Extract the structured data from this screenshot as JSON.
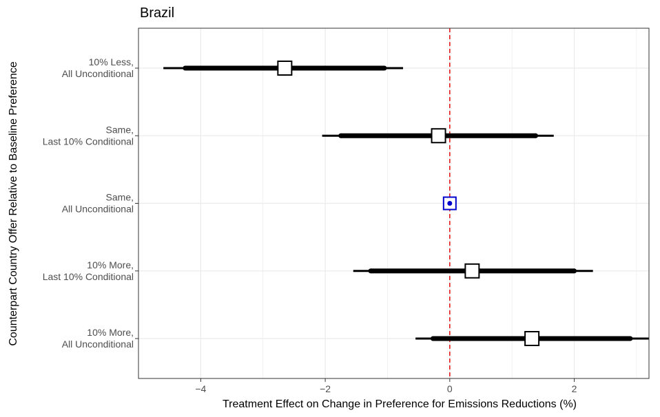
{
  "chart_data": {
    "type": "forest",
    "title": "Brazil",
    "xlabel": "Treatment Effect on Change in Preference for Emissions Reductions (%)",
    "ylabel": "Counterpart Country Offer Relative to Baseline Preference",
    "xlim": [
      -5,
      3.2
    ],
    "xticks": [
      {
        "value": -4,
        "label": "−4"
      },
      {
        "value": -2,
        "label": "−2"
      },
      {
        "value": 0,
        "label": "0"
      },
      {
        "value": 2,
        "label": "2"
      }
    ],
    "reference_line": {
      "x": 0,
      "color": "#e41a1c",
      "style": "dashed"
    },
    "grid": true,
    "rows": [
      {
        "label_lines": [
          "10% Less,",
          "All Unconditional"
        ],
        "estimate": -2.65,
        "ci90": [
          -4.25,
          -1.05
        ],
        "ci95": [
          -4.6,
          -0.75
        ],
        "baseline": false
      },
      {
        "label_lines": [
          "Same,",
          "Last 10% Conditional"
        ],
        "estimate": -0.18,
        "ci90": [
          -1.75,
          1.38
        ],
        "ci95": [
          -2.05,
          1.67
        ],
        "baseline": false
      },
      {
        "label_lines": [
          "Same,",
          "All Unconditional"
        ],
        "estimate": 0,
        "ci90": null,
        "ci95": null,
        "baseline": true
      },
      {
        "label_lines": [
          "10% More,",
          "Last 10% Conditional"
        ],
        "estimate": 0.36,
        "ci90": [
          -1.27,
          2.0
        ],
        "ci95": [
          -1.55,
          2.3
        ],
        "baseline": false
      },
      {
        "label_lines": [
          "10% More,",
          "All Unconditional"
        ],
        "estimate": 1.32,
        "ci90": [
          -0.27,
          2.9
        ],
        "ci95": [
          -0.55,
          3.2
        ],
        "baseline": false
      }
    ],
    "colors": {
      "estimate": "#000000",
      "baseline": "#0000cc",
      "reference": "#e41a1c",
      "grid": "#ebebeb"
    }
  }
}
